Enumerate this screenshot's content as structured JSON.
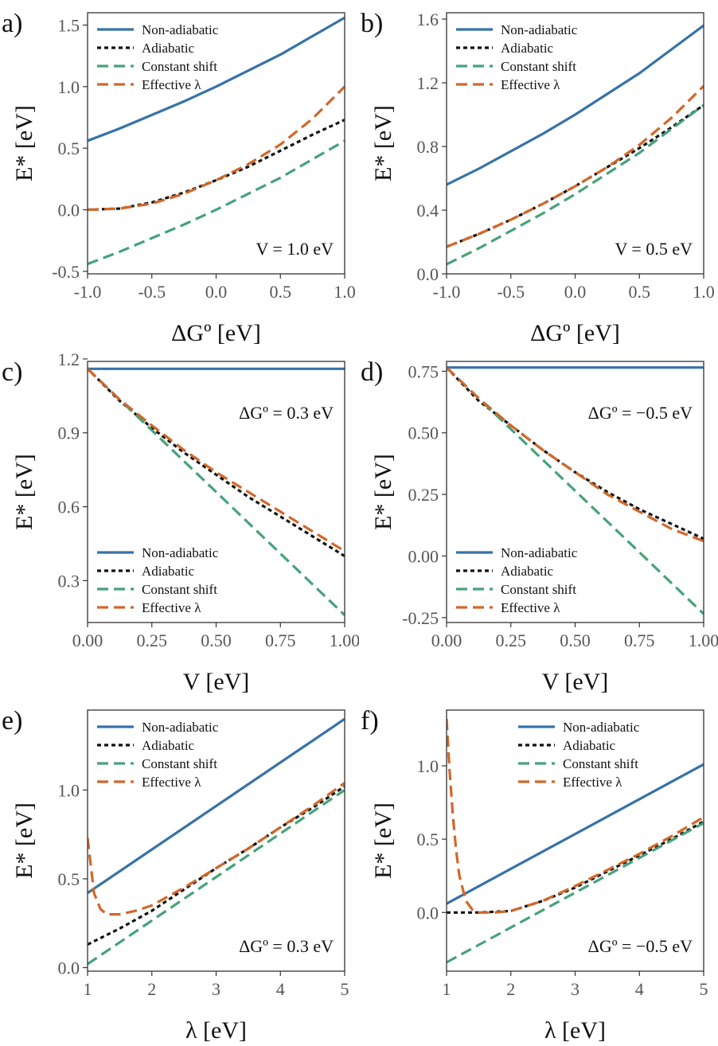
{
  "legend_labels": {
    "non_adiabatic": "Non-adiabatic",
    "adiabatic": "Adiabatic",
    "constant_shift": "Constant shift",
    "effective_lambda": "Effective λ"
  },
  "colors": {
    "non_adiabatic": "#3672a8",
    "adiabatic": "#111111",
    "constant_shift": "#46a27a",
    "effective_lambda": "#d2672a"
  },
  "chart_data": [
    {
      "panel_label": "a)",
      "type": "line",
      "xlabel": "ΔGº [eV]",
      "ylabel": "E* [eV]",
      "annotation": "V = 1.0 eV",
      "xlim": [
        -1.0,
        1.0
      ],
      "ylim": [
        -0.52,
        1.6
      ],
      "xticks": [
        -1.0,
        -0.5,
        0.0,
        0.5,
        1.0
      ],
      "xtick_labels": [
        "-1.0",
        "-0.5",
        "0.0",
        "0.5",
        "1.0"
      ],
      "yticks": [
        -0.5,
        0.0,
        0.5,
        1.0,
        1.5
      ],
      "ytick_labels": [
        "-0.5",
        "0.0",
        "0.5",
        "1.0",
        "1.5"
      ],
      "legend_position": "top-left",
      "x": [
        -1.0,
        -0.75,
        -0.5,
        -0.25,
        0.0,
        0.25,
        0.5,
        0.75,
        1.0
      ],
      "series": [
        {
          "key": "non_adiabatic",
          "values": [
            0.56,
            0.66,
            0.77,
            0.88,
            1.0,
            1.13,
            1.26,
            1.41,
            1.56
          ]
        },
        {
          "key": "adiabatic",
          "values": [
            0.0,
            0.01,
            0.06,
            0.14,
            0.24,
            0.35,
            0.48,
            0.61,
            0.73
          ]
        },
        {
          "key": "constant_shift",
          "values": [
            -0.44,
            -0.34,
            -0.23,
            -0.12,
            0.0,
            0.13,
            0.26,
            0.41,
            0.56
          ]
        },
        {
          "key": "effective_lambda",
          "values": [
            0.0,
            0.01,
            0.05,
            0.13,
            0.24,
            0.37,
            0.53,
            0.74,
            1.0
          ]
        }
      ]
    },
    {
      "panel_label": "b)",
      "type": "line",
      "xlabel": "ΔGº [eV]",
      "ylabel": "E* [eV]",
      "annotation": "V = 0.5 eV",
      "xlim": [
        -1.0,
        1.0
      ],
      "ylim": [
        0.0,
        1.64
      ],
      "xticks": [
        -1.0,
        -0.5,
        0.0,
        0.5,
        1.0
      ],
      "xtick_labels": [
        "-1.0",
        "-0.5",
        "0.0",
        "0.5",
        "1.0"
      ],
      "yticks": [
        0.0,
        0.4,
        0.8,
        1.2,
        1.6
      ],
      "ytick_labels": [
        "0.0",
        "0.4",
        "0.8",
        "1.2",
        "1.6"
      ],
      "legend_position": "top-left",
      "x": [
        -1.0,
        -0.75,
        -0.5,
        -0.25,
        0.0,
        0.25,
        0.5,
        0.75,
        1.0
      ],
      "series": [
        {
          "key": "non_adiabatic",
          "values": [
            0.56,
            0.66,
            0.77,
            0.88,
            1.0,
            1.13,
            1.26,
            1.41,
            1.56
          ]
        },
        {
          "key": "adiabatic",
          "values": [
            0.17,
            0.25,
            0.34,
            0.44,
            0.55,
            0.67,
            0.79,
            0.92,
            1.06
          ]
        },
        {
          "key": "constant_shift",
          "values": [
            0.06,
            0.16,
            0.27,
            0.38,
            0.5,
            0.63,
            0.76,
            0.91,
            1.06
          ]
        },
        {
          "key": "effective_lambda",
          "values": [
            0.17,
            0.25,
            0.34,
            0.44,
            0.55,
            0.67,
            0.81,
            0.98,
            1.18
          ]
        }
      ]
    },
    {
      "panel_label": "c)",
      "type": "line",
      "xlabel": "V [eV]",
      "ylabel": "E* [eV]",
      "annotation": "ΔGº = 0.3 eV",
      "xlim": [
        0.0,
        1.0
      ],
      "ylim": [
        0.13,
        1.19
      ],
      "xticks": [
        0.0,
        0.25,
        0.5,
        0.75,
        1.0
      ],
      "xtick_labels": [
        "0.00",
        "0.25",
        "0.50",
        "0.75",
        "1.00"
      ],
      "yticks": [
        0.3,
        0.6,
        0.9,
        1.2
      ],
      "ytick_labels": [
        "0.3",
        "0.6",
        "0.9",
        "1.2"
      ],
      "legend_position": "bottom-left",
      "x": [
        0.0,
        0.125,
        0.25,
        0.375,
        0.5,
        0.625,
        0.75,
        0.875,
        1.0
      ],
      "series": [
        {
          "key": "non_adiabatic",
          "values": [
            1.16,
            1.16,
            1.16,
            1.16,
            1.16,
            1.16,
            1.16,
            1.16,
            1.16
          ]
        },
        {
          "key": "adiabatic",
          "values": [
            1.16,
            1.03,
            0.92,
            0.82,
            0.73,
            0.64,
            0.56,
            0.48,
            0.4
          ]
        },
        {
          "key": "constant_shift",
          "values": [
            1.16,
            1.035,
            0.91,
            0.785,
            0.66,
            0.535,
            0.41,
            0.285,
            0.16
          ]
        },
        {
          "key": "effective_lambda",
          "values": [
            1.16,
            1.035,
            0.93,
            0.83,
            0.74,
            0.66,
            0.58,
            0.5,
            0.42
          ]
        }
      ]
    },
    {
      "panel_label": "d)",
      "type": "line",
      "xlabel": "V [eV]",
      "ylabel": "E* [eV]",
      "annotation": "ΔGº = −0.5 eV",
      "xlim": [
        0.0,
        1.0
      ],
      "ylim": [
        -0.27,
        0.79
      ],
      "xticks": [
        0.0,
        0.25,
        0.5,
        0.75,
        1.0
      ],
      "xtick_labels": [
        "0.00",
        "0.25",
        "0.50",
        "0.75",
        "1.00"
      ],
      "yticks": [
        -0.25,
        0.0,
        0.25,
        0.5,
        0.75
      ],
      "ytick_labels": [
        "-0.25",
        "0.00",
        "0.25",
        "0.50",
        "0.75"
      ],
      "legend_position": "bottom-left",
      "x": [
        0.0,
        0.125,
        0.25,
        0.375,
        0.5,
        0.625,
        0.75,
        0.875,
        1.0
      ],
      "series": [
        {
          "key": "non_adiabatic",
          "values": [
            0.765,
            0.765,
            0.765,
            0.765,
            0.765,
            0.765,
            0.765,
            0.765,
            0.765
          ]
        },
        {
          "key": "adiabatic",
          "values": [
            0.765,
            0.63,
            0.53,
            0.43,
            0.34,
            0.26,
            0.19,
            0.13,
            0.07
          ]
        },
        {
          "key": "constant_shift",
          "values": [
            0.765,
            0.64,
            0.515,
            0.39,
            0.265,
            0.14,
            0.015,
            -0.11,
            -0.235
          ]
        },
        {
          "key": "effective_lambda",
          "values": [
            0.765,
            0.64,
            0.53,
            0.43,
            0.34,
            0.25,
            0.18,
            0.11,
            0.06
          ]
        }
      ]
    },
    {
      "panel_label": "e)",
      "type": "line",
      "xlabel": "λ [eV]",
      "ylabel": "E* [eV]",
      "annotation": "ΔGº = 0.3 eV",
      "xlim": [
        1.0,
        5.0
      ],
      "ylim": [
        -0.02,
        1.45
      ],
      "xticks": [
        1,
        2,
        3,
        4,
        5
      ],
      "xtick_labels": [
        "1",
        "2",
        "3",
        "4",
        "5"
      ],
      "yticks": [
        0.0,
        0.5,
        1.0
      ],
      "ytick_labels": [
        "0.0",
        "0.5",
        "1.0"
      ],
      "legend_position": "top-left",
      "x": [
        1.0,
        1.1,
        1.2,
        1.3,
        1.5,
        1.75,
        2.0,
        2.5,
        3.0,
        3.5,
        4.0,
        4.5,
        5.0
      ],
      "series": [
        {
          "key": "non_adiabatic",
          "x": [
            1.0,
            5.0
          ],
          "values": [
            0.42,
            1.4
          ]
        },
        {
          "key": "adiabatic",
          "x": [
            1.0,
            1.5,
            2.0,
            2.5,
            3.0,
            3.5,
            4.0,
            4.5,
            5.0
          ],
          "values": [
            0.13,
            0.22,
            0.32,
            0.44,
            0.56,
            0.67,
            0.79,
            0.9,
            1.02
          ]
        },
        {
          "key": "constant_shift",
          "x": [
            1.0,
            5.0
          ],
          "values": [
            0.02,
            1.0
          ]
        },
        {
          "key": "effective_lambda",
          "x": [
            1.0,
            1.1,
            1.2,
            1.3,
            1.5,
            1.75,
            2.0,
            2.5,
            3.0,
            3.5,
            4.0,
            4.5,
            5.0
          ],
          "values": [
            0.73,
            0.42,
            0.33,
            0.3,
            0.3,
            0.32,
            0.35,
            0.45,
            0.56,
            0.67,
            0.79,
            0.91,
            1.04
          ]
        }
      ]
    },
    {
      "panel_label": "f)",
      "type": "line",
      "xlabel": "λ [eV]",
      "ylabel": "E* [eV]",
      "annotation": "ΔGº = −0.5 eV",
      "xlim": [
        1.0,
        5.0
      ],
      "ylim": [
        -0.4,
        1.38
      ],
      "xticks": [
        1,
        2,
        3,
        4,
        5
      ],
      "xtick_labels": [
        "1",
        "2",
        "3",
        "4",
        "5"
      ],
      "yticks": [
        0.0,
        0.5,
        1.0
      ],
      "ytick_labels": [
        "0.0",
        "0.5",
        "1.0"
      ],
      "legend_position": "top-right",
      "series": [
        {
          "key": "non_adiabatic",
          "x": [
            1.0,
            5.0
          ],
          "values": [
            0.06,
            1.01
          ]
        },
        {
          "key": "adiabatic",
          "x": [
            1.0,
            1.5,
            2.0,
            2.5,
            3.0,
            3.5,
            4.0,
            4.5,
            5.0
          ],
          "values": [
            0.0,
            0.0,
            0.01,
            0.08,
            0.17,
            0.28,
            0.39,
            0.5,
            0.62
          ]
        },
        {
          "key": "constant_shift",
          "x": [
            1.0,
            5.0
          ],
          "values": [
            -0.34,
            0.61
          ]
        },
        {
          "key": "effective_lambda",
          "x": [
            1.0,
            1.05,
            1.1,
            1.15,
            1.2,
            1.3,
            1.4,
            1.5,
            1.75,
            2.0,
            2.5,
            3.0,
            3.5,
            4.0,
            4.5,
            5.0
          ],
          "values": [
            1.32,
            0.95,
            0.65,
            0.42,
            0.25,
            0.08,
            0.02,
            0.0,
            0.0,
            0.01,
            0.08,
            0.18,
            0.29,
            0.4,
            0.52,
            0.65
          ]
        }
      ]
    }
  ]
}
